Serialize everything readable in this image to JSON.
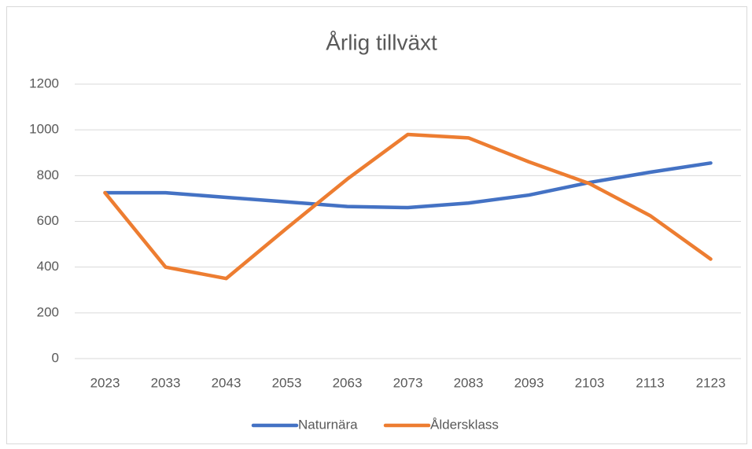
{
  "chart_data": {
    "type": "line",
    "title": "Årlig tillväxt",
    "categories": [
      "2023",
      "2033",
      "2043",
      "2053",
      "2063",
      "2073",
      "2083",
      "2093",
      "2103",
      "2113",
      "2123"
    ],
    "series": [
      {
        "name": "Naturnära",
        "color": "#4472c4",
        "values": [
          725,
          725,
          705,
          685,
          665,
          660,
          680,
          715,
          770,
          815,
          855
        ]
      },
      {
        "name": "Åldersklass",
        "color": "#ed7d31",
        "values": [
          725,
          400,
          350,
          570,
          785,
          980,
          965,
          860,
          765,
          625,
          435
        ]
      }
    ],
    "ylim": [
      0,
      1200
    ],
    "yticks": [
      0,
      200,
      400,
      600,
      800,
      1000,
      1200
    ],
    "grid": true,
    "legend": "bottom"
  }
}
